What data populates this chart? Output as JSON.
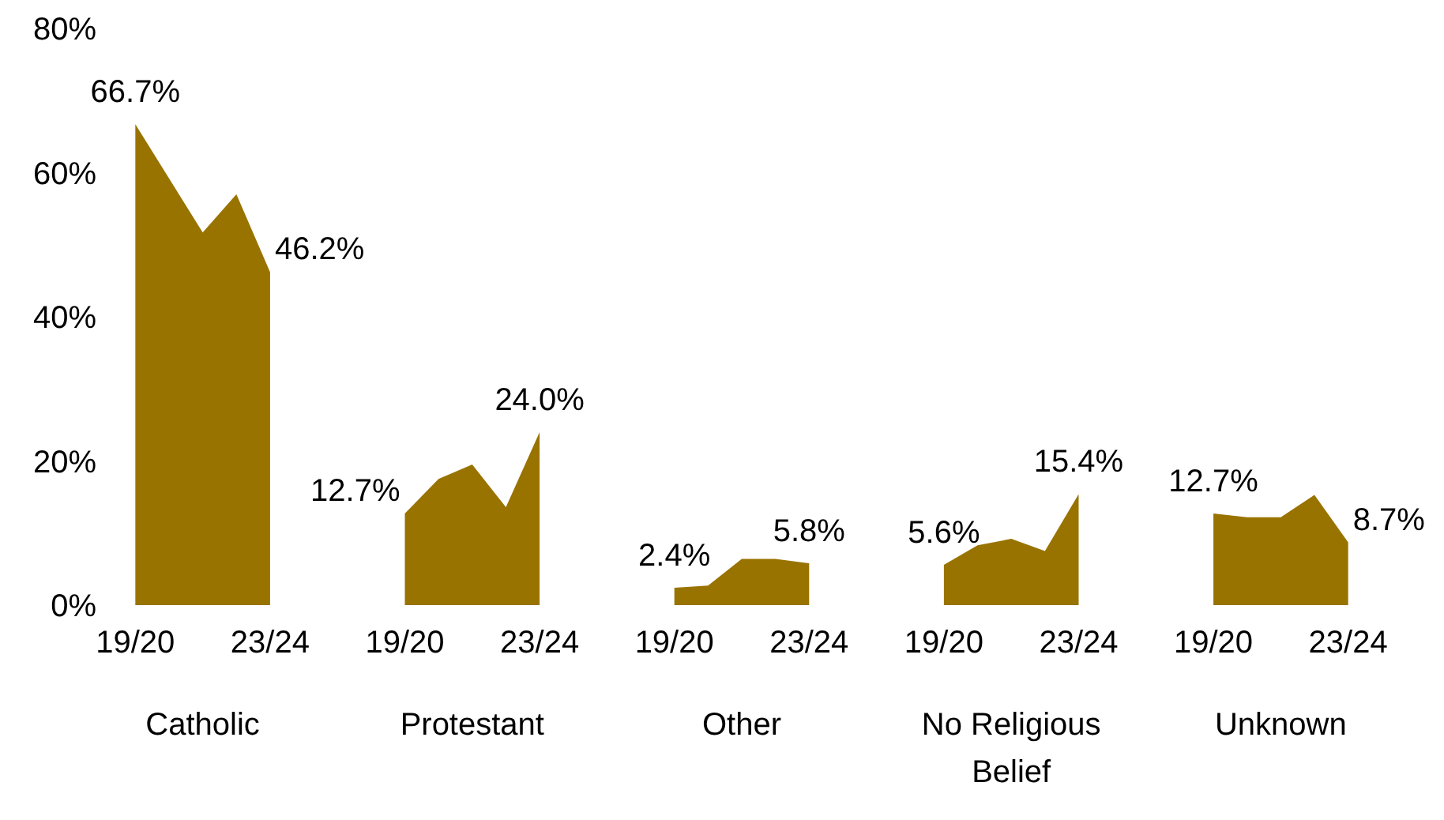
{
  "chart_data": {
    "type": "area",
    "categories": [
      "19/20",
      null,
      null,
      null,
      "23/24",
      null,
      null,
      null,
      "19/20",
      null,
      null,
      null,
      "23/24",
      null,
      null,
      null,
      "19/20",
      null,
      null,
      null,
      "23/24",
      null,
      null,
      null,
      "19/20",
      null,
      null,
      null,
      "23/24",
      null,
      null,
      null,
      "19/20",
      null,
      null,
      null,
      "23/24"
    ],
    "series": [
      {
        "color": "#997300",
        "values": [
          66.7,
          59.2,
          51.7,
          57,
          46.2,
          null,
          null,
          null,
          12.7,
          17.5,
          19.5,
          13.6,
          24.0,
          null,
          null,
          null,
          2.4,
          2.7,
          6.4,
          6.4,
          5.8,
          null,
          null,
          null,
          5.6,
          8.3,
          9.2,
          7.5,
          15.4,
          null,
          null,
          null,
          12.7,
          12.2,
          12.2,
          15.3,
          8.7
        ],
        "value_labels": [
          "66.7%",
          null,
          null,
          null,
          "46.2%",
          null,
          null,
          null,
          "12.7%",
          null,
          null,
          null,
          "24.0%",
          null,
          null,
          null,
          "2.4%",
          null,
          null,
          null,
          "5.8%",
          null,
          null,
          null,
          "5.6%",
          null,
          null,
          null,
          "15.4%",
          null,
          null,
          null,
          "12.7%",
          null,
          null,
          null,
          "8.7%"
        ]
      }
    ],
    "ylim": [
      0,
      80
    ],
    "yticks": [
      {
        "value": 0,
        "label": "0%"
      },
      {
        "value": 20,
        "label": "20%"
      },
      {
        "value": 40,
        "label": "40%"
      },
      {
        "value": 60,
        "label": "60%"
      },
      {
        "value": 80,
        "label": "80%"
      }
    ],
    "annotations": [
      "Catholic",
      "Protestant",
      "Other",
      "No Religious Belief",
      "Unknown"
    ]
  }
}
